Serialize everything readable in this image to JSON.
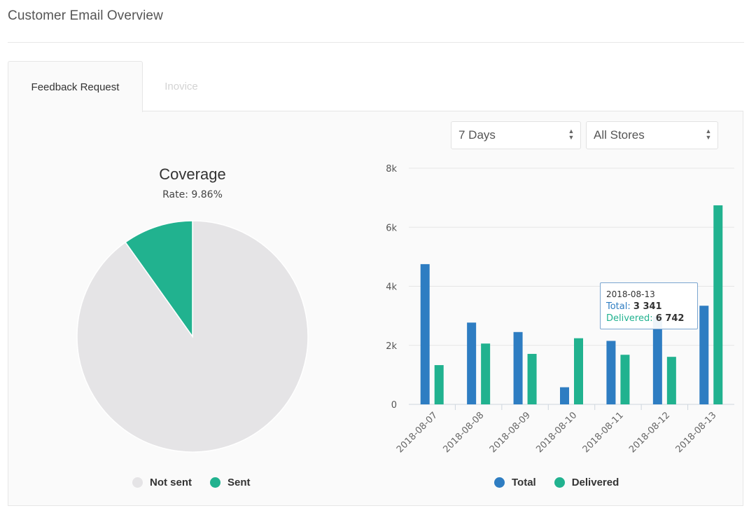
{
  "header": {
    "title": "Customer Email Overview"
  },
  "tabs": [
    {
      "label": "Feedback Request",
      "active": true
    },
    {
      "label": "Inovice",
      "active": false
    }
  ],
  "filters": {
    "period": "7 Days",
    "store": "All Stores"
  },
  "coverage": {
    "title": "Coverage",
    "subtitle": "Rate: 9.86%",
    "legend": [
      {
        "label": "Not sent",
        "color": "#e5e4e6"
      },
      {
        "label": "Sent",
        "color": "#21b28f"
      }
    ]
  },
  "bar_legend": [
    {
      "label": "Total",
      "color": "#2e7dc2"
    },
    {
      "label": "Delivered",
      "color": "#21b28f"
    }
  ],
  "tooltip": {
    "date": "2018-08-13",
    "total_label": "Total",
    "total_value": "3 341",
    "delivered_label": "Delivered",
    "delivered_value": "6 742"
  },
  "chart_data": [
    {
      "type": "pie",
      "title": "Coverage",
      "subtitle": "Rate: 9.86%",
      "categories": [
        "Not sent",
        "Sent"
      ],
      "values": [
        90.14,
        9.86
      ],
      "colors": [
        "#e5e4e6",
        "#21b28f"
      ],
      "legend": "bottom"
    },
    {
      "type": "bar",
      "categories": [
        "2018-08-07",
        "2018-08-08",
        "2018-08-09",
        "2018-08-10",
        "2018-08-11",
        "2018-08-12",
        "2018-08-13"
      ],
      "series": [
        {
          "name": "Total",
          "color": "#2e7dc2",
          "values": [
            4750,
            2770,
            2450,
            580,
            2150,
            2980,
            3341
          ]
        },
        {
          "name": "Delivered",
          "color": "#21b28f",
          "values": [
            1330,
            2060,
            1710,
            2240,
            1680,
            1610,
            6742
          ]
        }
      ],
      "ylim": [
        0,
        8000
      ],
      "yticks": [
        "0",
        "2k",
        "4k",
        "6k",
        "8k"
      ],
      "ytick_values": [
        0,
        2000,
        4000,
        6000,
        8000
      ],
      "grid": true,
      "legend": "bottom"
    }
  ]
}
